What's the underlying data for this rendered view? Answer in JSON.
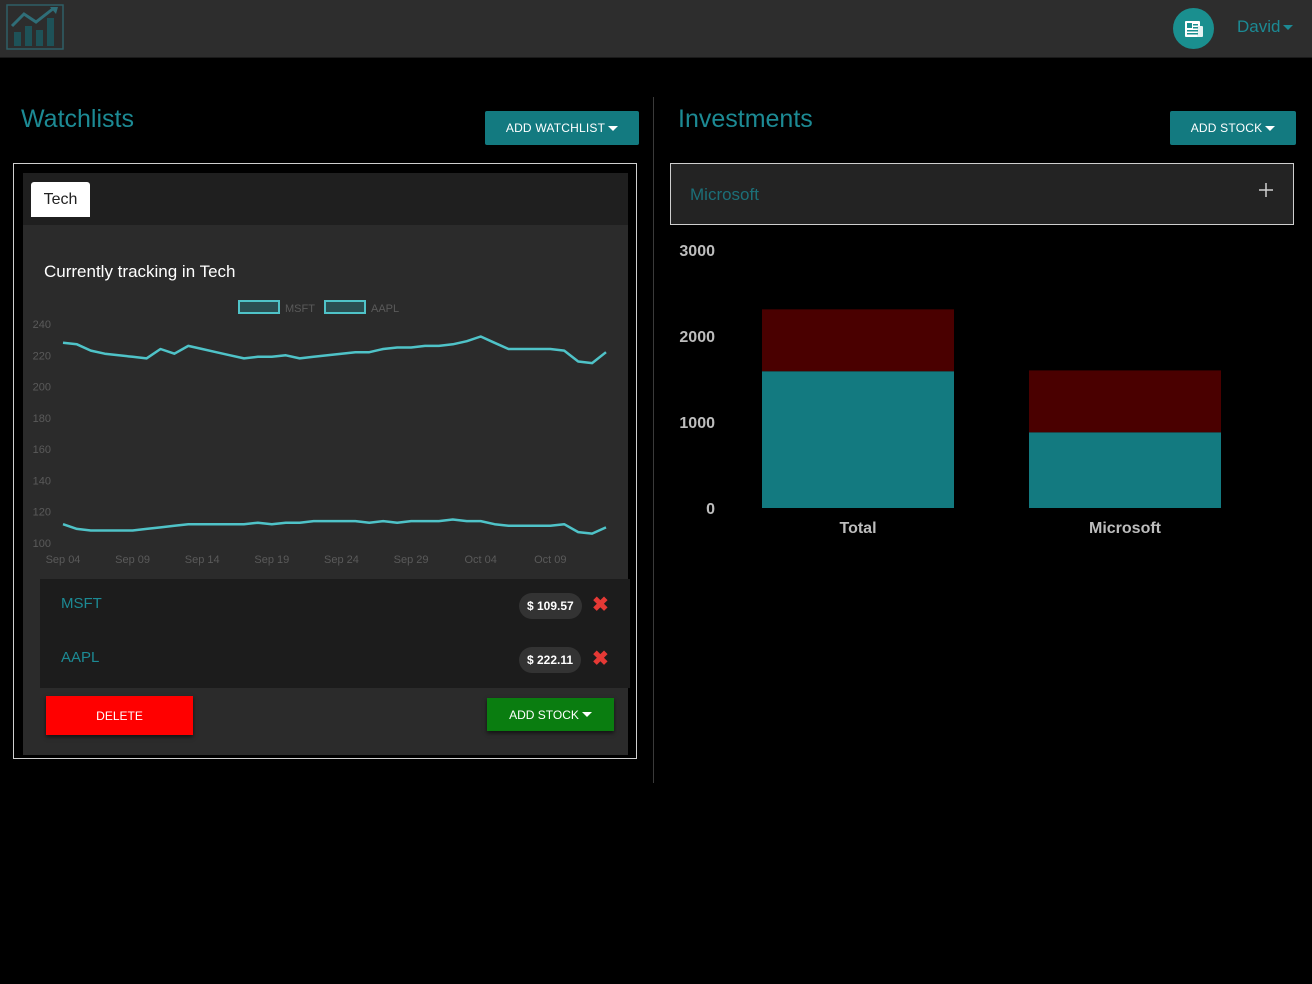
{
  "navbar": {
    "logo_icon": "chart-logo-icon",
    "avatar_icon": "newspaper-icon",
    "user_name": "David"
  },
  "watchlists": {
    "title": "Watchlists",
    "add_button": "ADD WATCHLIST",
    "tabs": [
      {
        "label": "Tech",
        "active": true
      }
    ],
    "tracking_title": "Currently tracking in Tech",
    "stocks": [
      {
        "symbol": "MSFT",
        "price": "$ 109.57"
      },
      {
        "symbol": "AAPL",
        "price": "$ 222.11"
      }
    ],
    "delete_button": "DELETE",
    "add_stock_button": "ADD STOCK"
  },
  "investments": {
    "title": "Investments",
    "add_button": "ADD STOCK",
    "items": [
      {
        "name": "Microsoft"
      }
    ]
  },
  "colors": {
    "accent": "#1c8a94",
    "teal_button": "#137a80",
    "line": "#4fc3c8",
    "bar_base": "#137a80",
    "bar_top": "#4a0000",
    "delete": "#ff0000",
    "add_green": "#0a7d10"
  },
  "chart_data": [
    {
      "type": "line",
      "legend": [
        "MSFT",
        "AAPL"
      ],
      "legend_position": "top",
      "x_ticks": [
        "Sep 04",
        "Sep 09",
        "Sep 14",
        "Sep 19",
        "Sep 24",
        "Sep 29",
        "Oct 04",
        "Oct 09"
      ],
      "y_ticks": [
        100,
        120,
        140,
        160,
        180,
        200,
        220,
        240
      ],
      "ylim": [
        100,
        240
      ],
      "x": [
        "Sep 04",
        "Sep 05",
        "Sep 06",
        "Sep 07",
        "Sep 08",
        "Sep 09",
        "Sep 10",
        "Sep 11",
        "Sep 12",
        "Sep 13",
        "Sep 14",
        "Sep 15",
        "Sep 16",
        "Sep 17",
        "Sep 18",
        "Sep 19",
        "Sep 20",
        "Sep 21",
        "Sep 22",
        "Sep 23",
        "Sep 24",
        "Sep 25",
        "Sep 26",
        "Sep 27",
        "Sep 28",
        "Sep 29",
        "Sep 30",
        "Oct 01",
        "Oct 02",
        "Oct 03",
        "Oct 04",
        "Oct 05",
        "Oct 06",
        "Oct 07",
        "Oct 08",
        "Oct 09",
        "Oct 10",
        "Oct 11",
        "Oct 12",
        "Oct 13"
      ],
      "series": [
        {
          "name": "AAPL",
          "values": [
            228,
            227,
            223,
            221,
            220,
            219,
            218,
            224,
            221,
            226,
            224,
            222,
            220,
            218,
            219,
            219,
            220,
            218,
            219,
            220,
            221,
            222,
            222,
            224,
            225,
            225,
            226,
            226,
            227,
            229,
            232,
            228,
            224,
            224,
            224,
            224,
            223,
            216,
            215,
            222
          ]
        },
        {
          "name": "MSFT",
          "values": [
            112,
            109,
            108,
            108,
            108,
            108,
            109,
            110,
            111,
            112,
            112,
            112,
            112,
            112,
            113,
            112,
            113,
            113,
            114,
            114,
            114,
            114,
            113,
            114,
            113,
            114,
            114,
            114,
            115,
            114,
            114,
            112,
            111,
            111,
            111,
            111,
            112,
            107,
            106,
            110
          ]
        }
      ]
    },
    {
      "type": "bar",
      "stacked": true,
      "categories": [
        "Total",
        "Microsoft"
      ],
      "series": [
        {
          "values": [
            1590,
            880
          ]
        },
        {
          "values": [
            720,
            720
          ]
        }
      ],
      "ylim": [
        0,
        3000
      ],
      "y_ticks": [
        0,
        1000,
        2000,
        3000
      ]
    }
  ]
}
